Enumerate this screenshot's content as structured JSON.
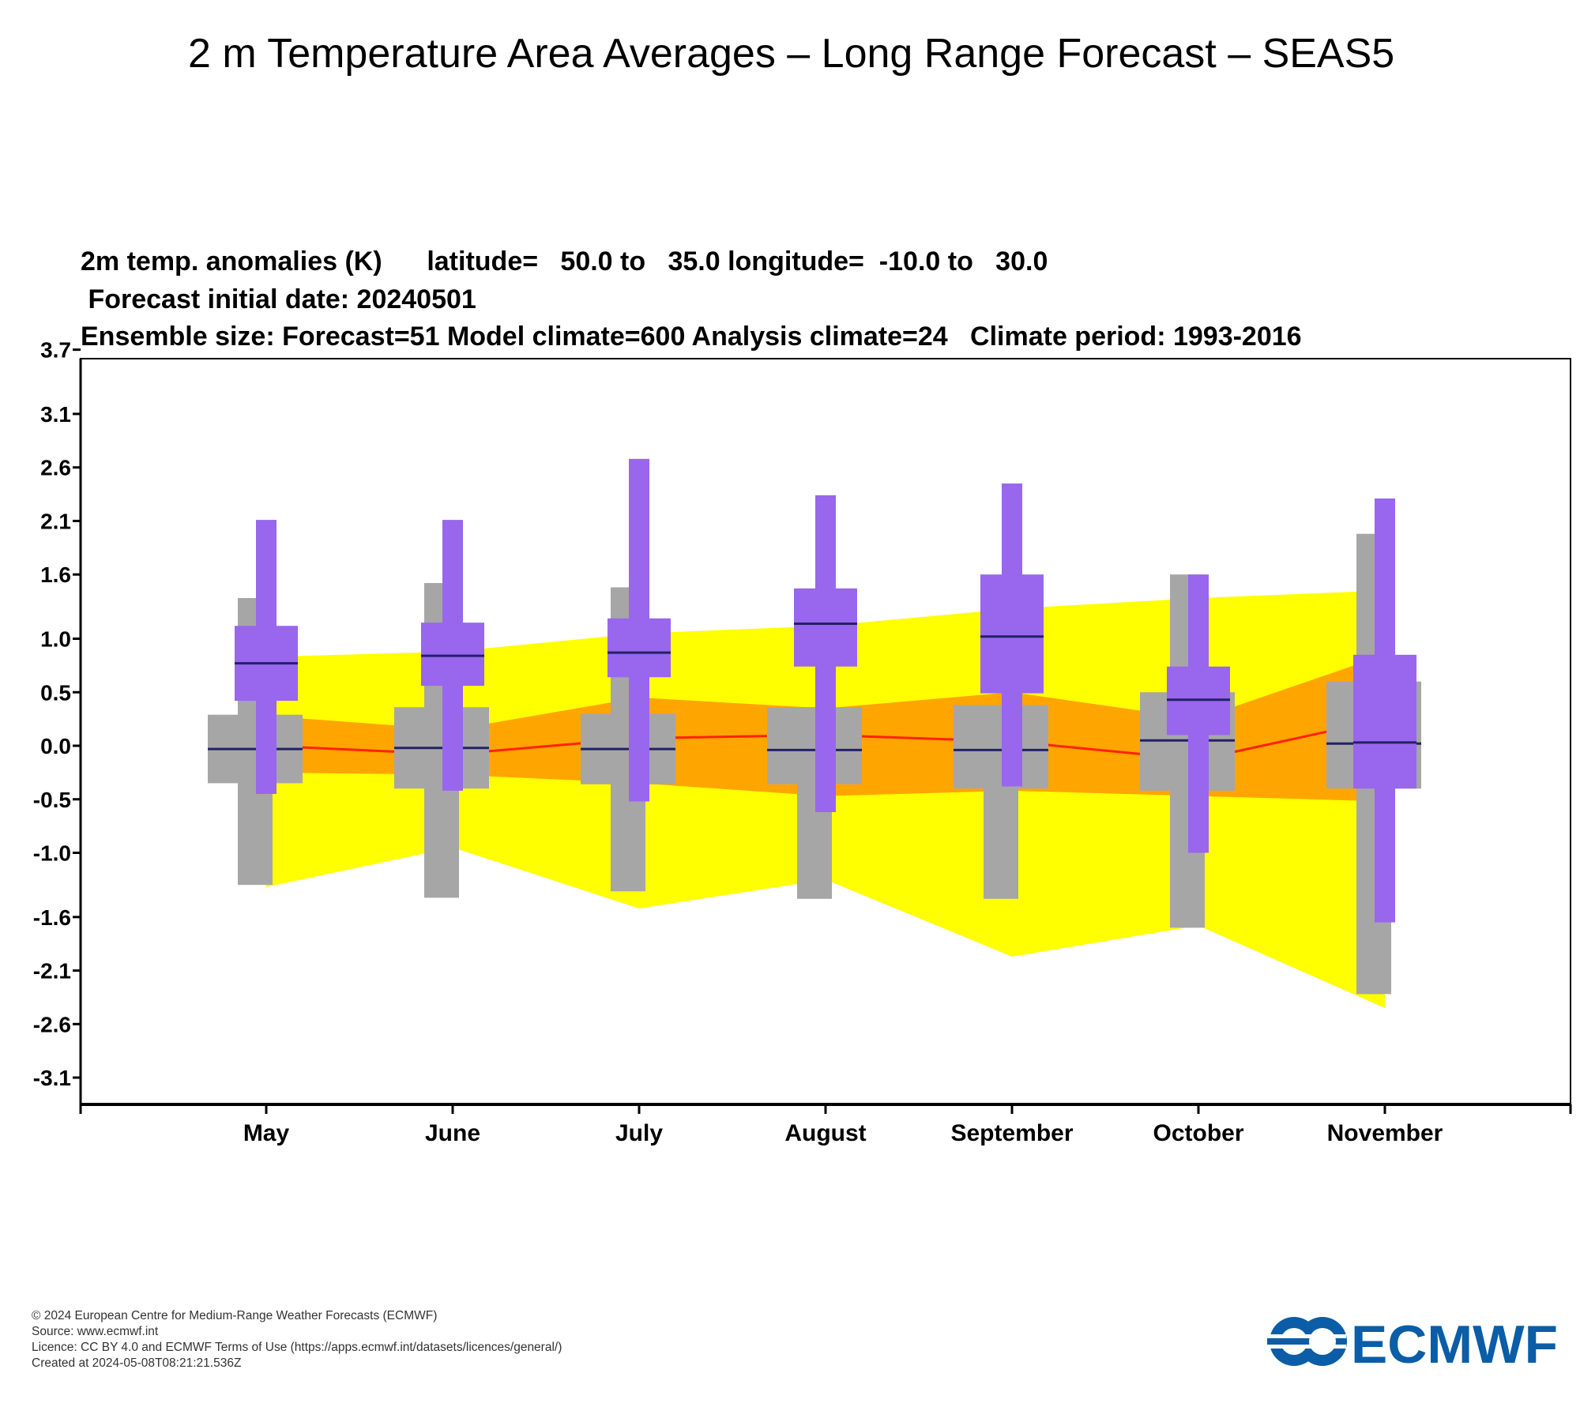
{
  "page": {
    "title": "2  m Temperature Area Averages – Long Range Forecast – SEAS5"
  },
  "chart_data": {
    "type": "box",
    "header_lines": [
      "2m temp. anomalies (K)      latitude=   50.0 to   35.0 longitude=  -10.0 to   30.0",
      " Forecast initial date: 20240501",
      "Ensemble size: Forecast=51 Model climate=600 Analysis climate=24   Climate period: 1993-2016"
    ],
    "categories": [
      "May",
      "June",
      "July",
      "August",
      "September",
      "October",
      "November"
    ],
    "y_ticks": [
      "3.7",
      "3.1",
      "2.6",
      "2.1",
      "1.6",
      "1.0",
      "0.5",
      "0.0",
      "-0.5",
      "-1.0",
      "-1.6",
      "-2.1",
      "-2.6",
      "-3.1"
    ],
    "ylim": [
      -3.3,
      3.85
    ],
    "analysis_climate": {
      "outer_upper": [
        0.83,
        0.88,
        1.05,
        1.12,
        1.28,
        1.38,
        1.45
      ],
      "outer_lower": [
        -1.32,
        -0.95,
        -1.52,
        -1.25,
        -1.97,
        -1.68,
        -2.45
      ],
      "inner_upper": [
        0.28,
        0.15,
        0.45,
        0.35,
        0.5,
        0.25,
        0.85
      ],
      "inner_lower": [
        -0.25,
        -0.27,
        -0.35,
        -0.47,
        -0.42,
        -0.47,
        -0.52
      ],
      "median": [
        0.0,
        -0.08,
        0.07,
        0.1,
        0.04,
        -0.13,
        0.25
      ]
    },
    "series": [
      {
        "name": "Model climate",
        "color": "#a6a6a6",
        "whisker_low": [
          -1.3,
          -1.42,
          -1.36,
          -1.43,
          -1.43,
          -1.7,
          -2.32
        ],
        "whisker_high": [
          1.38,
          1.52,
          1.48,
          null,
          null,
          1.6,
          1.98
        ],
        "box_low": [
          -0.35,
          -0.4,
          -0.36,
          -0.36,
          -0.4,
          -0.42,
          -0.4
        ],
        "box_high": [
          0.29,
          0.36,
          0.3,
          0.36,
          0.38,
          0.5,
          0.6
        ],
        "median": [
          -0.03,
          -0.02,
          -0.03,
          -0.04,
          -0.04,
          0.05,
          0.02
        ]
      },
      {
        "name": "Forecast",
        "color": "#9966ee",
        "whisker_low": [
          -0.45,
          -0.42,
          -0.52,
          -0.62,
          -0.38,
          -1.0,
          -1.65
        ],
        "whisker_high": [
          2.11,
          2.11,
          2.68,
          2.34,
          2.45,
          1.6,
          2.31
        ],
        "box_low": [
          0.42,
          0.56,
          0.64,
          0.74,
          0.49,
          0.1,
          -0.4
        ],
        "box_high": [
          1.12,
          1.15,
          1.19,
          1.47,
          1.6,
          0.74,
          0.85
        ],
        "median": [
          0.77,
          0.84,
          0.87,
          1.14,
          1.02,
          0.43,
          0.03
        ]
      }
    ],
    "colors": {
      "outer_band": "#ffff00",
      "inner_band": "#ffa500",
      "median_line": "#ff2200",
      "model_climate": "#a6a6a6",
      "forecast": "#9966ee",
      "median_tick": "#222266"
    },
    "grid": false
  },
  "footer": {
    "lines": [
      "© 2024 European Centre for Medium-Range Weather Forecasts (ECMWF)",
      "Source: www.ecmwf.int",
      "Licence: CC BY 4.0 and ECMWF Terms of Use (https://apps.ecmwf.int/datasets/licences/general/)",
      "Created at 2024-05-08T08:21:21.536Z"
    ]
  },
  "logo": {
    "text": "ECMWF",
    "color": "#0a5da6"
  }
}
